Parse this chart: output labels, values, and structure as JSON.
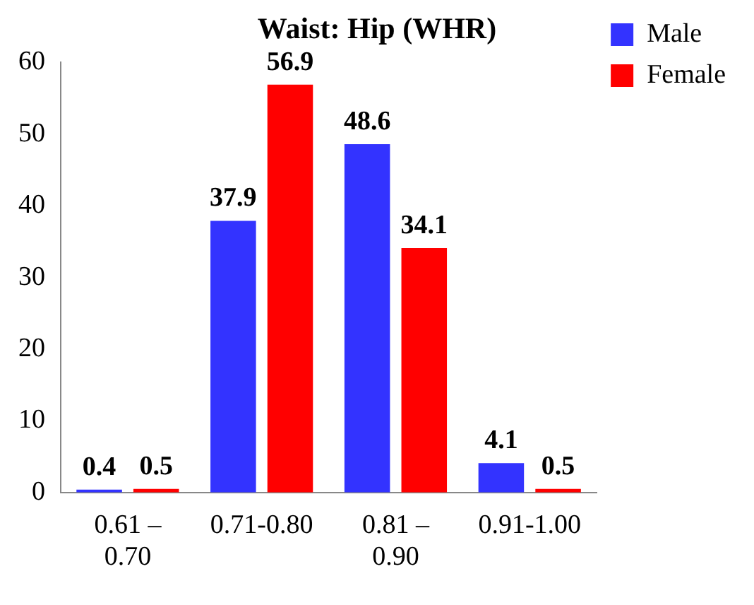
{
  "chart_data": {
    "type": "bar",
    "title": "Waist: Hip (WHR)",
    "categories": [
      "0.61 – 0.70",
      "0.71-0.80",
      "0.81 – 0.90",
      "0.91-1.00"
    ],
    "series": [
      {
        "name": "Male",
        "color": "#3333ff",
        "values": [
          0.4,
          37.9,
          48.6,
          4.1
        ]
      },
      {
        "name": "Female",
        "color": "#ff0000",
        "values": [
          0.5,
          56.9,
          34.1,
          0.5
        ]
      }
    ],
    "ylim": [
      0,
      60
    ],
    "yticks": [
      0,
      10,
      20,
      30,
      40,
      50,
      60
    ],
    "grid": false,
    "legend": "top right",
    "data_labels": true
  }
}
